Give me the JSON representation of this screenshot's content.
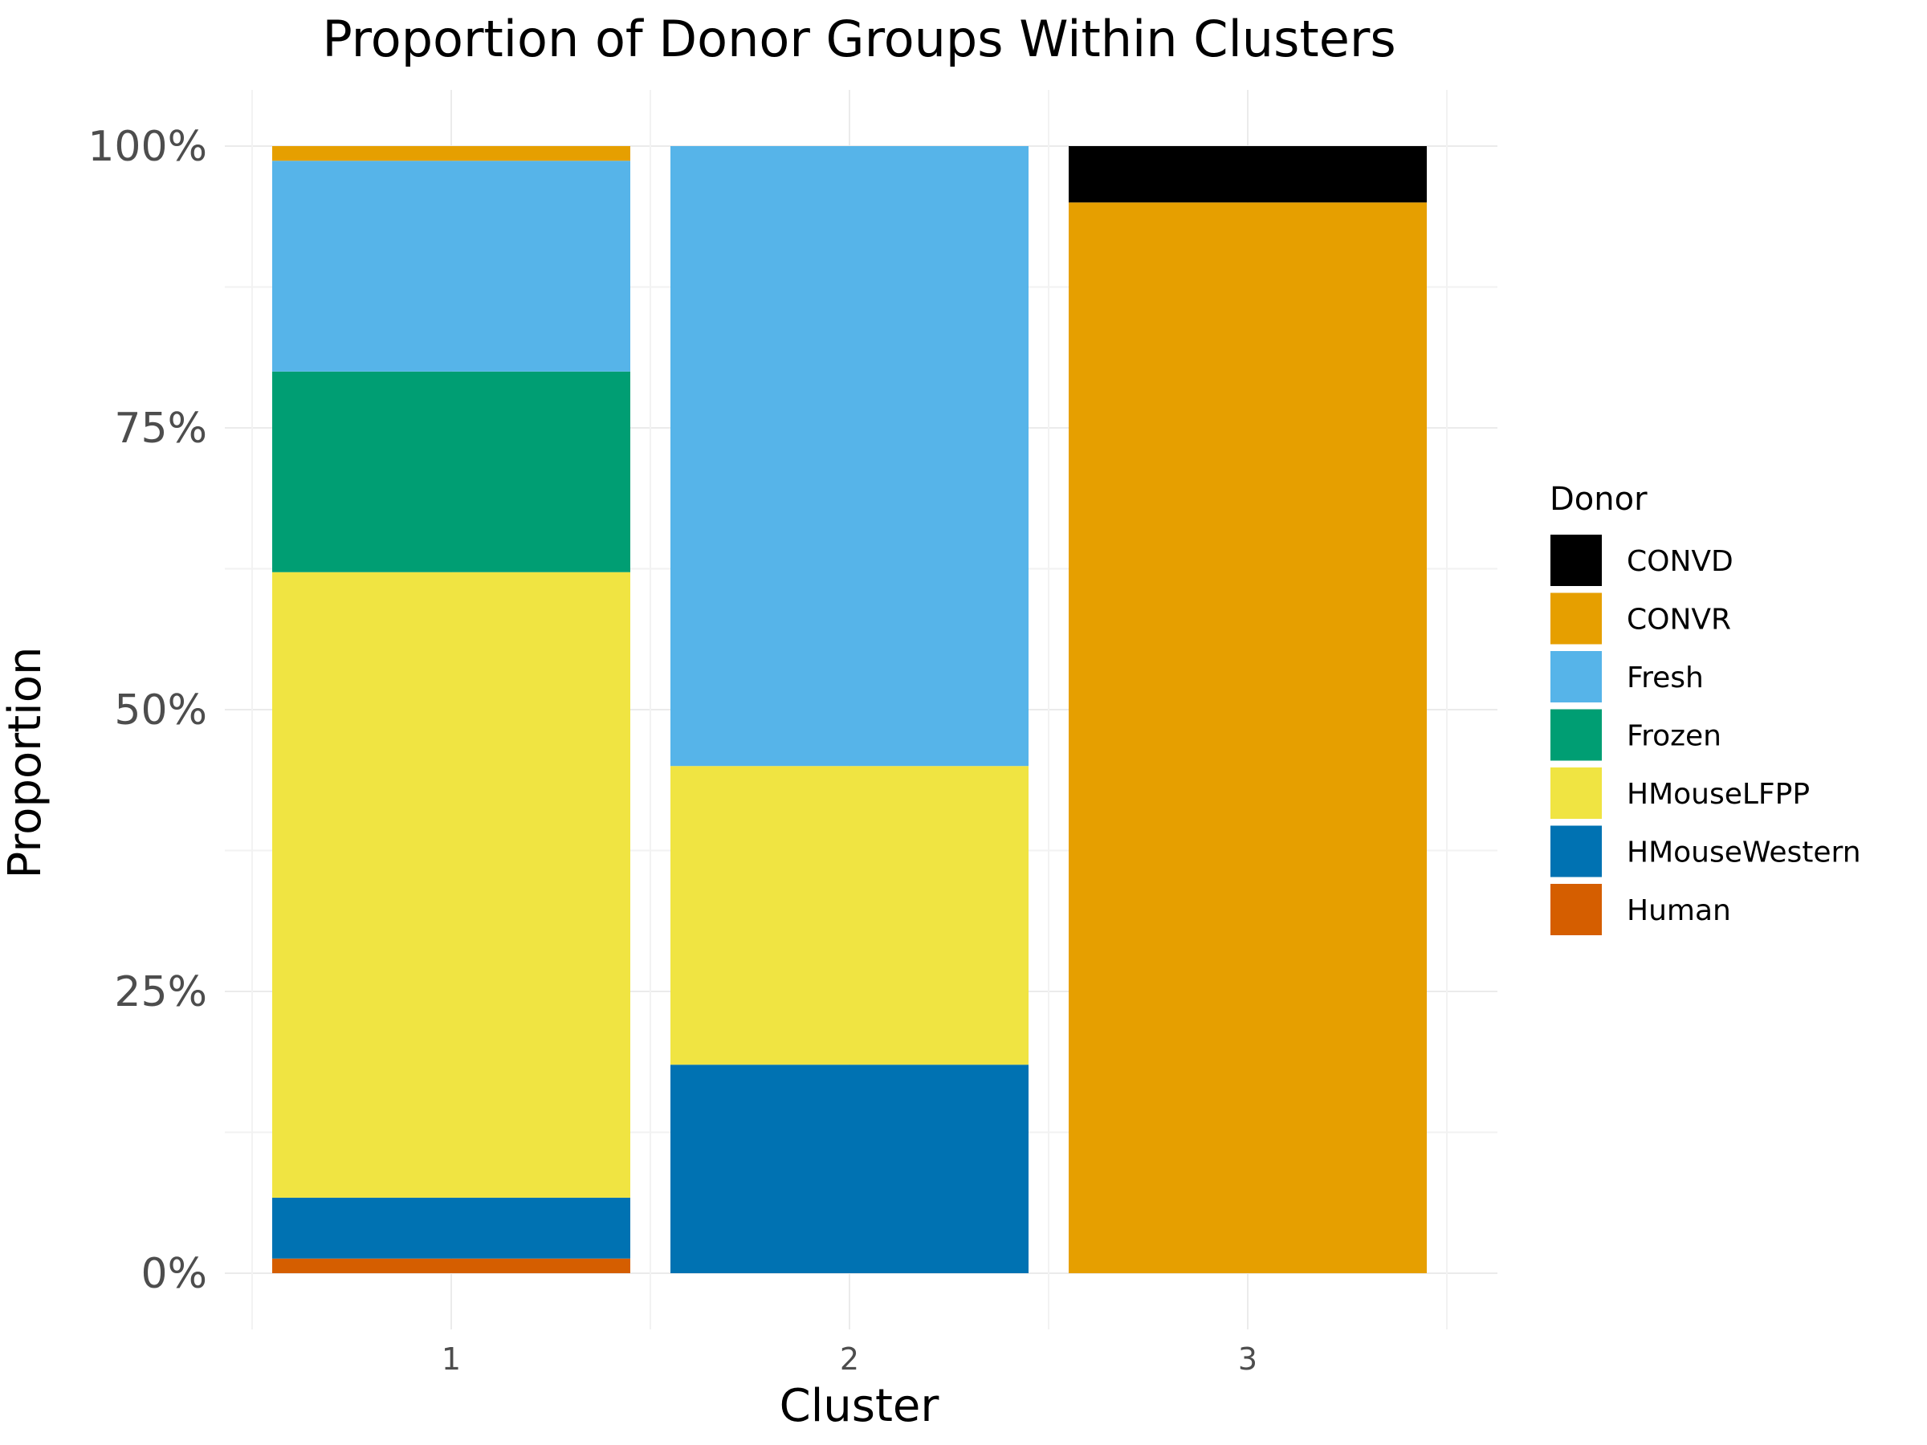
{
  "chart_data": {
    "type": "bar",
    "stacked": true,
    "title": "Proportion of Donor Groups Within Clusters",
    "xlabel": "Cluster",
    "ylabel": "Proportion",
    "categories": [
      "1",
      "2",
      "3"
    ],
    "ylim": [
      0,
      1
    ],
    "yticks": [
      "0%",
      "25%",
      "50%",
      "75%",
      "100%"
    ],
    "ytick_values": [
      0,
      0.25,
      0.5,
      0.75,
      1.0
    ],
    "grid": true,
    "legend": {
      "title": "Donor",
      "position": "right"
    },
    "series": [
      {
        "name": "CONVD",
        "color": "#000000",
        "values": [
          0.0,
          0.0,
          0.05
        ]
      },
      {
        "name": "CONVR",
        "color": "#E69F00",
        "values": [
          0.013,
          0.0,
          0.95
        ]
      },
      {
        "name": "Fresh",
        "color": "#56B4E9",
        "values": [
          0.187,
          0.55,
          0.0
        ]
      },
      {
        "name": "Frozen",
        "color": "#009E73",
        "values": [
          0.178,
          0.0,
          0.0
        ]
      },
      {
        "name": "HMouseLFPP",
        "color": "#F0E442",
        "values": [
          0.555,
          0.265,
          0.0
        ]
      },
      {
        "name": "HMouseWestern",
        "color": "#0072B2",
        "values": [
          0.054,
          0.185,
          0.0
        ]
      },
      {
        "name": "Human",
        "color": "#D55E00",
        "values": [
          0.013,
          0.0,
          0.0
        ]
      }
    ]
  }
}
